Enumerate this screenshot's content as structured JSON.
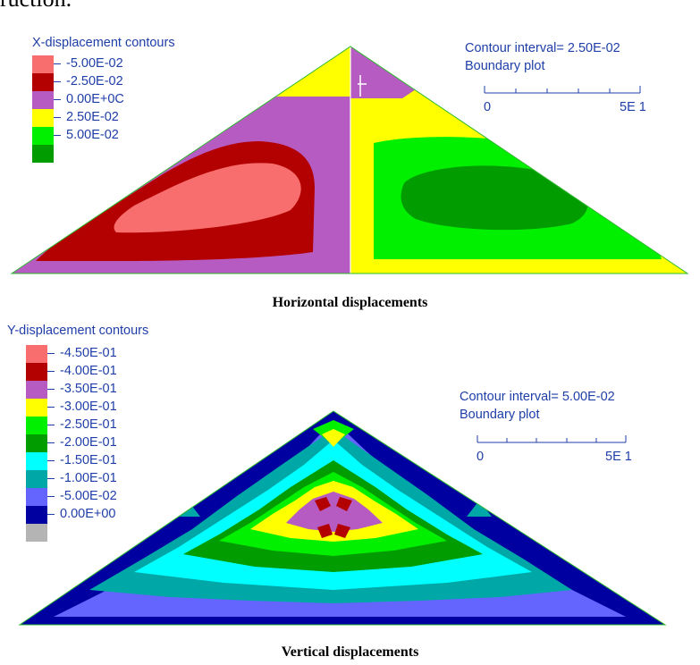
{
  "document": {
    "heading_fragment": "ruction."
  },
  "top_panel": {
    "title": "X-displacement contours",
    "legend": [
      {
        "label": "-5.00E-02",
        "color": "#f86d6d"
      },
      {
        "label": "-2.50E-02",
        "color": "#b30000"
      },
      {
        "label": "0.00E+0C",
        "color": "#b65bc1"
      },
      {
        "label": "2.50E-02",
        "color": "#ffff00"
      },
      {
        "label": "5.00E-02",
        "color": "#00f000"
      },
      {
        "label": "",
        "color": "#009c00"
      }
    ],
    "contour_interval": "Contour interval= 2.50E-02",
    "boundary_plot": "Boundary plot",
    "scale_start": "0",
    "scale_end": "5E 1",
    "caption": "Horizontal displacements"
  },
  "bottom_panel": {
    "title": "Y-displacement contours",
    "legend": [
      {
        "label": "-4.50E-01",
        "color": "#f86d6d"
      },
      {
        "label": "-4.00E-01",
        "color": "#b30000"
      },
      {
        "label": "-3.50E-01",
        "color": "#b65bc1"
      },
      {
        "label": "-3.00E-01",
        "color": "#ffff00"
      },
      {
        "label": "-2.50E-01",
        "color": "#00f000"
      },
      {
        "label": "-2.00E-01",
        "color": "#009c00"
      },
      {
        "label": "-1.50E-01",
        "color": "#00ffff"
      },
      {
        "label": "-1.00E-01",
        "color": "#00a7a7"
      },
      {
        "label": "-5.00E-02",
        "color": "#6464ff"
      },
      {
        "label": "0.00E+00",
        "color": "#0000a0"
      },
      {
        "label": "",
        "color": "#b4b4b4"
      }
    ],
    "contour_interval": "Contour interval= 5.00E-02",
    "boundary_plot": "Boundary plot",
    "scale_start": "0",
    "scale_end": "5E 1",
    "caption": "Vertical displacements"
  }
}
